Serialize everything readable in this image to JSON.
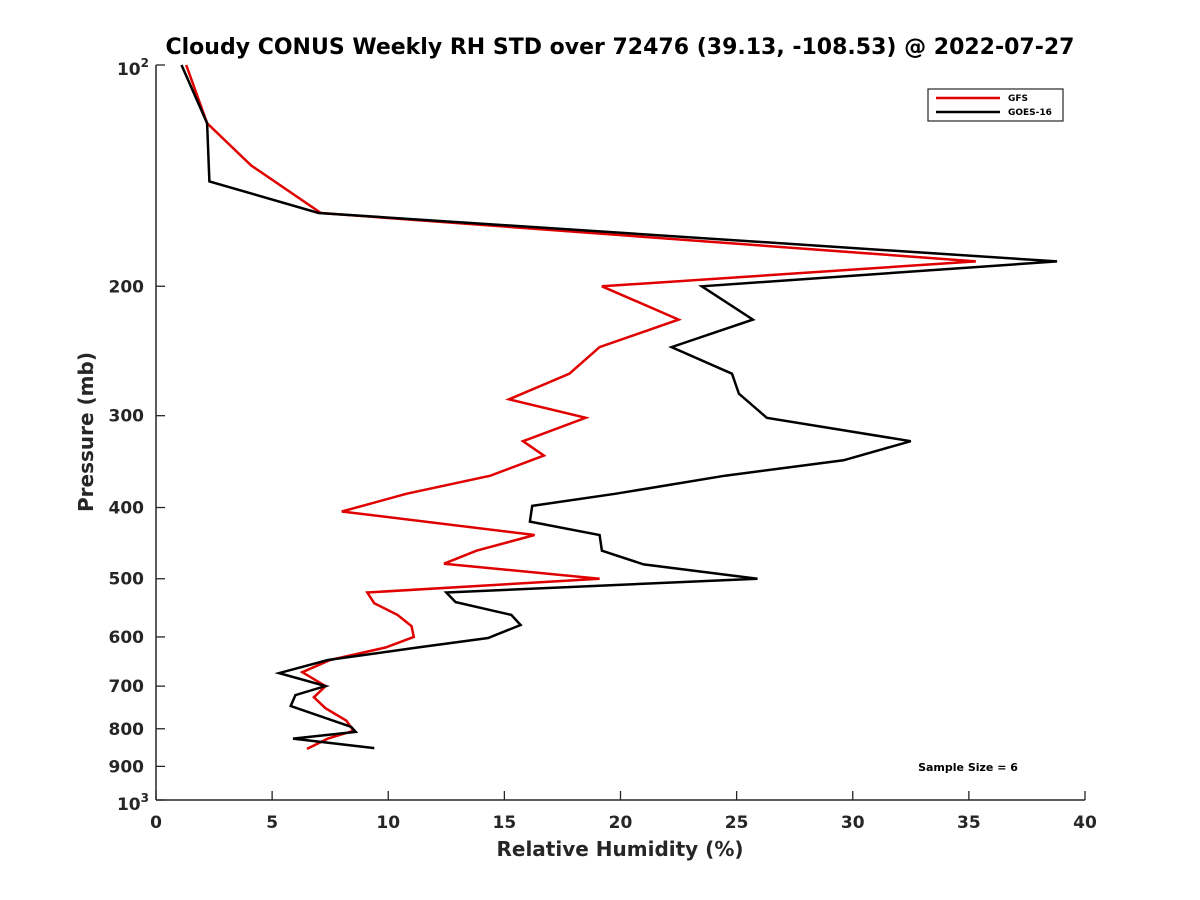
{
  "chart_data": {
    "type": "line",
    "title": "Cloudy CONUS Weekly RH STD over 72476 (39.13, -108.53) @ 2022-07-27",
    "xlabel": "Relative Humidity (%)",
    "ylabel": "Pressure (mb)",
    "xlim": [
      0,
      40
    ],
    "ylim": [
      100,
      1000
    ],
    "y_scale": "log",
    "y_reversed": true,
    "x_ticks": [
      "0",
      "5",
      "10",
      "15",
      "20",
      "25",
      "30",
      "35",
      "40"
    ],
    "y_ticks": [
      {
        "value": 100,
        "base": "10",
        "exp": "2",
        "label": ""
      },
      {
        "value": 200,
        "label": "200"
      },
      {
        "value": 300,
        "label": "300"
      },
      {
        "value": 400,
        "label": "400"
      },
      {
        "value": 500,
        "label": "500"
      },
      {
        "value": 600,
        "label": "600"
      },
      {
        "value": 700,
        "label": "700"
      },
      {
        "value": 800,
        "label": "800"
      },
      {
        "value": 900,
        "label": "900"
      },
      {
        "value": 1000,
        "base": "10",
        "exp": "3",
        "label": ""
      }
    ],
    "grid": false,
    "legend_position": "top-right",
    "annotation": "Sample Size = 6",
    "series": [
      {
        "name": "GFS",
        "color": "#e00000",
        "points": [
          {
            "x": 1.3,
            "y": 100
          },
          {
            "x": 2.2,
            "y": 120
          },
          {
            "x": 4.1,
            "y": 137
          },
          {
            "x": 7.1,
            "y": 159
          },
          {
            "x": 35.3,
            "y": 185
          },
          {
            "x": 19.2,
            "y": 200
          },
          {
            "x": 22.5,
            "y": 222
          },
          {
            "x": 19.1,
            "y": 242
          },
          {
            "x": 17.8,
            "y": 263
          },
          {
            "x": 15.2,
            "y": 285
          },
          {
            "x": 18.5,
            "y": 302
          },
          {
            "x": 15.8,
            "y": 325
          },
          {
            "x": 16.7,
            "y": 340
          },
          {
            "x": 14.4,
            "y": 362
          },
          {
            "x": 10.8,
            "y": 383
          },
          {
            "x": 8.0,
            "y": 405
          },
          {
            "x": 16.3,
            "y": 436
          },
          {
            "x": 13.8,
            "y": 458
          },
          {
            "x": 12.4,
            "y": 477
          },
          {
            "x": 19.1,
            "y": 500
          },
          {
            "x": 9.1,
            "y": 522
          },
          {
            "x": 9.4,
            "y": 540
          },
          {
            "x": 10.4,
            "y": 560
          },
          {
            "x": 11.0,
            "y": 580
          },
          {
            "x": 11.1,
            "y": 600
          },
          {
            "x": 9.9,
            "y": 620
          },
          {
            "x": 7.5,
            "y": 645
          },
          {
            "x": 6.3,
            "y": 670
          },
          {
            "x": 7.3,
            "y": 700
          },
          {
            "x": 6.8,
            "y": 725
          },
          {
            "x": 7.3,
            "y": 750
          },
          {
            "x": 8.2,
            "y": 780
          },
          {
            "x": 8.5,
            "y": 805
          },
          {
            "x": 7.4,
            "y": 825
          },
          {
            "x": 6.5,
            "y": 852
          }
        ]
      },
      {
        "name": "GOES-16",
        "color": "#000000",
        "points": [
          {
            "x": 1.1,
            "y": 100
          },
          {
            "x": 2.2,
            "y": 120
          },
          {
            "x": 2.3,
            "y": 144
          },
          {
            "x": 7.0,
            "y": 159
          },
          {
            "x": 38.8,
            "y": 185
          },
          {
            "x": 23.5,
            "y": 200
          },
          {
            "x": 25.7,
            "y": 222
          },
          {
            "x": 22.2,
            "y": 242
          },
          {
            "x": 24.8,
            "y": 263
          },
          {
            "x": 25.1,
            "y": 280
          },
          {
            "x": 26.3,
            "y": 302
          },
          {
            "x": 32.5,
            "y": 325
          },
          {
            "x": 29.6,
            "y": 345
          },
          {
            "x": 24.5,
            "y": 362
          },
          {
            "x": 19.8,
            "y": 383
          },
          {
            "x": 16.2,
            "y": 398
          },
          {
            "x": 16.1,
            "y": 418
          },
          {
            "x": 19.1,
            "y": 436
          },
          {
            "x": 19.2,
            "y": 458
          },
          {
            "x": 21.0,
            "y": 478
          },
          {
            "x": 25.9,
            "y": 500
          },
          {
            "x": 12.5,
            "y": 522
          },
          {
            "x": 12.9,
            "y": 538
          },
          {
            "x": 15.3,
            "y": 560
          },
          {
            "x": 15.7,
            "y": 578
          },
          {
            "x": 14.3,
            "y": 602
          },
          {
            "x": 11.3,
            "y": 620
          },
          {
            "x": 7.4,
            "y": 645
          },
          {
            "x": 5.3,
            "y": 672
          },
          {
            "x": 7.3,
            "y": 700
          },
          {
            "x": 6.0,
            "y": 720
          },
          {
            "x": 5.8,
            "y": 745
          },
          {
            "x": 8.4,
            "y": 795
          },
          {
            "x": 8.6,
            "y": 808
          },
          {
            "x": 5.9,
            "y": 825
          },
          {
            "x": 9.4,
            "y": 850
          }
        ]
      }
    ]
  }
}
